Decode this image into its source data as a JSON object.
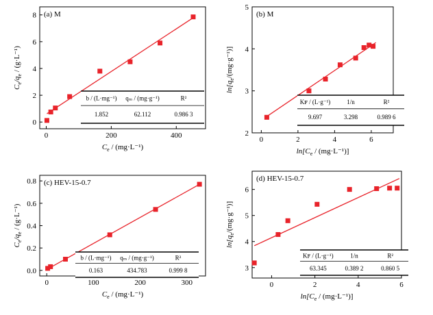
{
  "chart_data": [
    {
      "id": "a",
      "type": "scatter",
      "title": "(a) M",
      "xlabel_main": "C",
      "xlabel_sub": "e",
      "xlabel_unit": " / (mg·L⁻¹)",
      "ylabel_main": "C",
      "ylabel_sub": "e",
      "ylabel_mid": "/q",
      "ylabel_sub2": "e",
      "ylabel_unit": " / (g·L⁻¹)",
      "xlim": [
        -20,
        490
      ],
      "ylim": [
        -0.5,
        8.6
      ],
      "xticks": [
        0,
        200,
        400
      ],
      "yticks": [
        0,
        2,
        4,
        6,
        8
      ],
      "x": [
        2,
        14,
        28,
        72,
        165,
        258,
        350,
        452
      ],
      "y": [
        0.12,
        0.75,
        1.05,
        1.9,
        3.8,
        4.5,
        5.9,
        7.85
      ],
      "fit_line": {
        "x": [
          2,
          458
        ],
        "y": [
          0.62,
          7.88
        ]
      },
      "table": {
        "headers": [
          "b / (L·mg⁻¹)",
          "qₘ / (mg·g⁻¹)",
          "R²"
        ],
        "values": [
          "1.852",
          "62.112",
          "0.986 3"
        ]
      }
    },
    {
      "id": "b",
      "type": "scatter",
      "title": "(b) M",
      "xlabel_main": "ln[C",
      "xlabel_sub": "e",
      "xlabel_unit": " / (mg·L⁻¹)]",
      "ylabel_main": "ln[q",
      "ylabel_sub": "e",
      "ylabel_unit": "/(mg·g⁻¹)]",
      "xlim": [
        -0.5,
        7.2
      ],
      "ylim": [
        2,
        5
      ],
      "xticks": [
        0,
        2,
        4,
        6
      ],
      "yticks": [
        2,
        3,
        4,
        5
      ],
      "x": [
        0.3,
        2.6,
        3.5,
        4.3,
        5.15,
        5.6,
        5.88,
        6.1
      ],
      "y": [
        2.37,
        3.0,
        3.28,
        3.62,
        3.78,
        4.03,
        4.09,
        4.06
      ],
      "fit_line": {
        "x": [
          0.2,
          6.25
        ],
        "y": [
          2.36,
          4.15
        ]
      },
      "table": {
        "headers": [
          "Kꜰ / (L·g⁻¹)",
          "1/n",
          "R²"
        ],
        "values": [
          "9.697",
          "3.298",
          "0.989 6"
        ]
      }
    },
    {
      "id": "c",
      "type": "scatter",
      "title": "(c) HEV-15-0.7",
      "xlabel_main": "C",
      "xlabel_sub": "e",
      "xlabel_unit": " / (mg·L⁻¹)",
      "ylabel_main": "C",
      "ylabel_sub": "e",
      "ylabel_mid": "/q",
      "ylabel_sub2": "e",
      "ylabel_unit": " / (g·L⁻¹)",
      "xlim": [
        -15,
        340
      ],
      "ylim": [
        -0.05,
        0.85
      ],
      "xticks": [
        0,
        100,
        200,
        300
      ],
      "yticks": [
        0.0,
        0.2,
        0.4,
        0.6,
        0.8
      ],
      "x": [
        2,
        8,
        40,
        135,
        233,
        327
      ],
      "y": [
        0.018,
        0.033,
        0.1,
        0.318,
        0.545,
        0.77
      ],
      "fit_line": {
        "x": [
          0,
          330
        ],
        "y": [
          0.008,
          0.776
        ]
      },
      "table": {
        "headers": [
          "b / (L·mg⁻¹)",
          "qₘ / (mg·g⁻¹)",
          "R²"
        ],
        "values": [
          "0.163",
          "434.783",
          "0.999 8"
        ]
      }
    },
    {
      "id": "d",
      "type": "scatter",
      "title": "(d) HEV-15-0.7",
      "xlabel_main": "ln[C",
      "xlabel_sub": "e",
      "xlabel_unit": " / (mg·L⁻¹)]",
      "ylabel_main": "ln[q",
      "ylabel_sub": "e",
      "ylabel_unit": "/(mg·g⁻¹)]",
      "xlim": [
        -0.9,
        6
      ],
      "ylim": [
        2.6,
        6.7
      ],
      "xticks": [
        0,
        2,
        4,
        6
      ],
      "yticks": [
        3,
        4,
        5,
        6
      ],
      "x": [
        -0.8,
        0.3,
        0.75,
        2.1,
        3.6,
        4.85,
        5.45,
        5.8
      ],
      "y": [
        3.18,
        4.27,
        4.8,
        5.43,
        6.0,
        6.03,
        6.05,
        6.05
      ],
      "fit_line": {
        "x": [
          -0.8,
          5.9
        ],
        "y": [
          3.84,
          6.42
        ]
      },
      "table": {
        "headers": [
          "Kꜰ / (L·g⁻¹)",
          "1/n",
          "R²"
        ],
        "values": [
          "63.345",
          "0.389 2",
          "0.860 5"
        ]
      }
    }
  ],
  "colors": {
    "marker": "#e8232a",
    "fit_line": "#e8232a",
    "axis": "#000000"
  }
}
